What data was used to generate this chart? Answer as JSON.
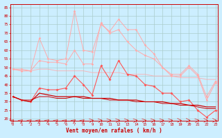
{
  "x": [
    0,
    1,
    2,
    3,
    4,
    5,
    6,
    7,
    8,
    9,
    10,
    11,
    12,
    13,
    14,
    15,
    16,
    17,
    18,
    19,
    20,
    21,
    22,
    23
  ],
  "series_rafales1": [
    49,
    48,
    48,
    54,
    53,
    53,
    52,
    60,
    52,
    52,
    76,
    70,
    72,
    65,
    60,
    57,
    55,
    50,
    46,
    46,
    51,
    46,
    33,
    42
  ],
  "series_rafales2": [
    49,
    49,
    48,
    67,
    55,
    54,
    55,
    83,
    60,
    59,
    75,
    71,
    78,
    72,
    72,
    63,
    58,
    50,
    45,
    45,
    50,
    45,
    31,
    41
  ],
  "series_moyen": [
    33,
    31,
    30,
    38,
    37,
    37,
    38,
    45,
    40,
    34,
    51,
    43,
    54,
    46,
    45,
    40,
    39,
    35,
    35,
    30,
    31,
    25,
    21,
    25
  ],
  "series_trend1": [
    33,
    31,
    30,
    35,
    34,
    33,
    33,
    33,
    33,
    32,
    32,
    32,
    31,
    31,
    31,
    30,
    30,
    30,
    29,
    29,
    28,
    28,
    27,
    27
  ],
  "series_trend2": [
    33,
    31,
    31,
    33,
    33,
    32,
    32,
    33,
    32,
    32,
    32,
    31,
    31,
    31,
    30,
    30,
    30,
    29,
    29,
    28,
    28,
    27,
    26,
    26
  ],
  "series_trend3": [
    49,
    48,
    48,
    49,
    49,
    48,
    48,
    48,
    48,
    47,
    47,
    47,
    47,
    46,
    46,
    46,
    45,
    45,
    45,
    44,
    44,
    44,
    43,
    43
  ],
  "color_light": "#ffaaaa",
  "color_med": "#ff5555",
  "color_dark": "#dd0000",
  "color_trend_dark": "#cc0000",
  "bg_color": "#cceeff",
  "grid_color": "#aacccc",
  "xlabel": "Vent moyen/en rafales ( km/h )",
  "yticks": [
    20,
    25,
    30,
    35,
    40,
    45,
    50,
    55,
    60,
    65,
    70,
    75,
    80,
    85
  ],
  "ylim": [
    19,
    87
  ],
  "xlim": [
    -0.3,
    23.3
  ],
  "arrow_directions": [
    45,
    45,
    45,
    45,
    45,
    45,
    45,
    45,
    45,
    10,
    10,
    10,
    10,
    10,
    10,
    10,
    10,
    10,
    10,
    0,
    0,
    10,
    0,
    0
  ]
}
